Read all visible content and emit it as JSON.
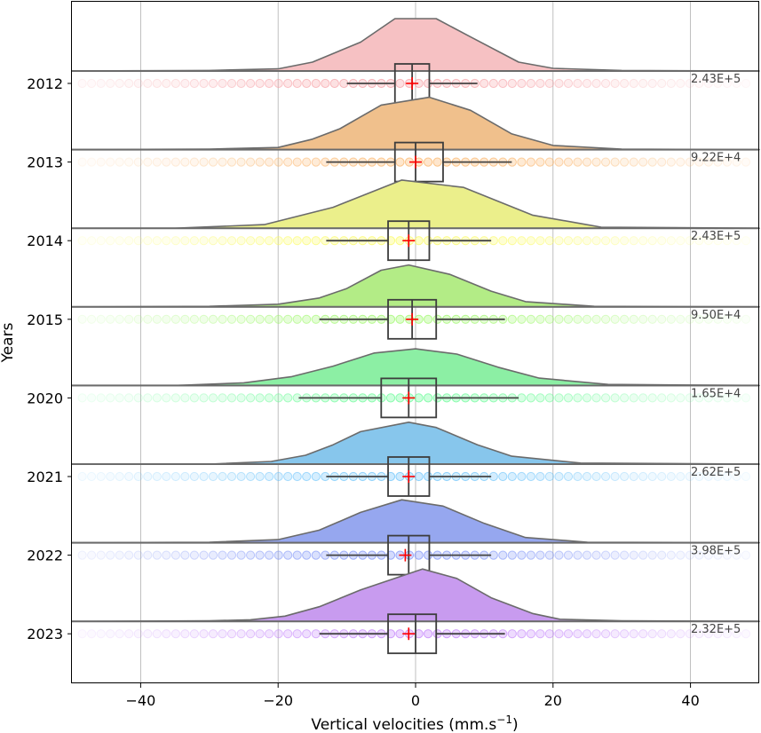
{
  "chart_data": {
    "type": "raincloud",
    "xlabel": "Vertical velocities (mm.s",
    "xlabel_sup": "−1",
    "xlabel_end": ")",
    "ylabel": "Years",
    "xlim": [
      -50,
      50
    ],
    "x_ticks": [
      -40,
      -20,
      0,
      20,
      40
    ],
    "x_tick_labels": [
      "−40",
      "−20",
      "0",
      "20",
      "40"
    ],
    "grid": true,
    "series": [
      {
        "label": "2012",
        "color": "#f6c1c3",
        "point_color": "#f7a1a6",
        "count": "2.43E+5",
        "q1": -3,
        "median": -0.5,
        "q3": 2,
        "mean": -0.5,
        "whisker": [
          -10,
          9
        ],
        "peak_x": -3,
        "density": [
          [
            -50,
            0
          ],
          [
            -30,
            0.01
          ],
          [
            -20,
            0.04
          ],
          [
            -15,
            0.17
          ],
          [
            -8,
            0.55
          ],
          [
            -3,
            1
          ],
          [
            3,
            1
          ],
          [
            8,
            0.65
          ],
          [
            15,
            0.17
          ],
          [
            20,
            0.05
          ],
          [
            30,
            0.01
          ],
          [
            50,
            0
          ]
        ]
      },
      {
        "label": "2013",
        "color": "#f0c08c",
        "point_color": "#fbb56b",
        "count": "9.22E+4",
        "q1": -3,
        "median": 0,
        "q3": 4,
        "mean": 0,
        "whisker": [
          -13,
          14
        ],
        "peak_x": 2,
        "density": [
          [
            -50,
            0
          ],
          [
            -30,
            0.01
          ],
          [
            -20,
            0.04
          ],
          [
            -15,
            0.2
          ],
          [
            -11,
            0.4
          ],
          [
            -5,
            0.85
          ],
          [
            2,
            1
          ],
          [
            8,
            0.75
          ],
          [
            14,
            0.3
          ],
          [
            20,
            0.08
          ],
          [
            30,
            0.01
          ],
          [
            50,
            0
          ]
        ]
      },
      {
        "label": "2014",
        "color": "#ebef8b",
        "point_color": "#fbfb62",
        "count": "2.43E+5",
        "q1": -4,
        "median": -1,
        "q3": 2,
        "mean": -1,
        "whisker": [
          -13,
          11
        ],
        "peak_x": -2,
        "density": [
          [
            -50,
            0
          ],
          [
            -35,
            0
          ],
          [
            -22,
            0.07
          ],
          [
            -12,
            0.4
          ],
          [
            -2,
            0.92
          ],
          [
            7,
            0.78
          ],
          [
            17,
            0.25
          ],
          [
            27,
            0.02
          ],
          [
            50,
            0
          ]
        ]
      },
      {
        "label": "2015",
        "color": "#b3ec86",
        "point_color": "#9ef86b",
        "count": "9.50E+4",
        "q1": -4,
        "median": -0.5,
        "q3": 3,
        "mean": -0.5,
        "whisker": [
          -14,
          13
        ],
        "peak_x": -1,
        "density": [
          [
            -50,
            0
          ],
          [
            -30,
            0.01
          ],
          [
            -20,
            0.05
          ],
          [
            -14,
            0.17
          ],
          [
            -10,
            0.35
          ],
          [
            -5,
            0.7
          ],
          [
            -1,
            0.8
          ],
          [
            5,
            0.62
          ],
          [
            11,
            0.3
          ],
          [
            16,
            0.1
          ],
          [
            26,
            0.01
          ],
          [
            50,
            0
          ]
        ]
      },
      {
        "label": "2020",
        "color": "#8cefa4",
        "point_color": "#6bfb98",
        "count": "1.65E+4",
        "q1": -5,
        "median": -1,
        "q3": 3,
        "mean": -1,
        "whisker": [
          -17,
          15
        ],
        "peak_x": 0,
        "density": [
          [
            -50,
            0
          ],
          [
            -35,
            0
          ],
          [
            -25,
            0.05
          ],
          [
            -18,
            0.17
          ],
          [
            -12,
            0.37
          ],
          [
            -6,
            0.62
          ],
          [
            0,
            0.7
          ],
          [
            6,
            0.6
          ],
          [
            12,
            0.35
          ],
          [
            18,
            0.14
          ],
          [
            28,
            0.02
          ],
          [
            50,
            0
          ]
        ]
      },
      {
        "label": "2021",
        "color": "#87c6ec",
        "point_color": "#6fc5fb",
        "count": "2.62E+5",
        "q1": -4,
        "median": -1,
        "q3": 2,
        "mean": -1,
        "whisker": [
          -13,
          11
        ],
        "peak_x": -1,
        "density": [
          [
            -50,
            0
          ],
          [
            -30,
            0
          ],
          [
            -21,
            0.05
          ],
          [
            -16,
            0.17
          ],
          [
            -12,
            0.37
          ],
          [
            -8,
            0.62
          ],
          [
            -1,
            0.8
          ],
          [
            3,
            0.7
          ],
          [
            9,
            0.37
          ],
          [
            14,
            0.15
          ],
          [
            24,
            0.02
          ],
          [
            50,
            0
          ]
        ]
      },
      {
        "label": "2022",
        "color": "#96a7ef",
        "point_color": "#8196f8",
        "count": "3.98E+5",
        "q1": -4,
        "median": -1,
        "q3": 2,
        "mean": -1.5,
        "whisker": [
          -13,
          11
        ],
        "peak_x": -2,
        "density": [
          [
            -50,
            0
          ],
          [
            -30,
            0.01
          ],
          [
            -20,
            0.06
          ],
          [
            -14,
            0.24
          ],
          [
            -8,
            0.58
          ],
          [
            -2,
            0.82
          ],
          [
            4,
            0.7
          ],
          [
            10,
            0.37
          ],
          [
            16,
            0.1
          ],
          [
            25,
            0.01
          ],
          [
            50,
            0
          ]
        ]
      },
      {
        "label": "2023",
        "color": "#c89bef",
        "point_color": "#c382fb",
        "count": "2.32E+5",
        "q1": -4,
        "median": 0,
        "q3": 3,
        "mean": -1,
        "whisker": [
          -14,
          13
        ],
        "peak_x": 1,
        "density": [
          [
            -50,
            0
          ],
          [
            -30,
            0.01
          ],
          [
            -24,
            0.03
          ],
          [
            -19,
            0.1
          ],
          [
            -14,
            0.28
          ],
          [
            -8,
            0.6
          ],
          [
            1,
            1
          ],
          [
            6,
            0.82
          ],
          [
            11,
            0.45
          ],
          [
            17,
            0.15
          ],
          [
            21,
            0.04
          ],
          [
            30,
            0.01
          ],
          [
            50,
            0
          ]
        ]
      }
    ]
  }
}
